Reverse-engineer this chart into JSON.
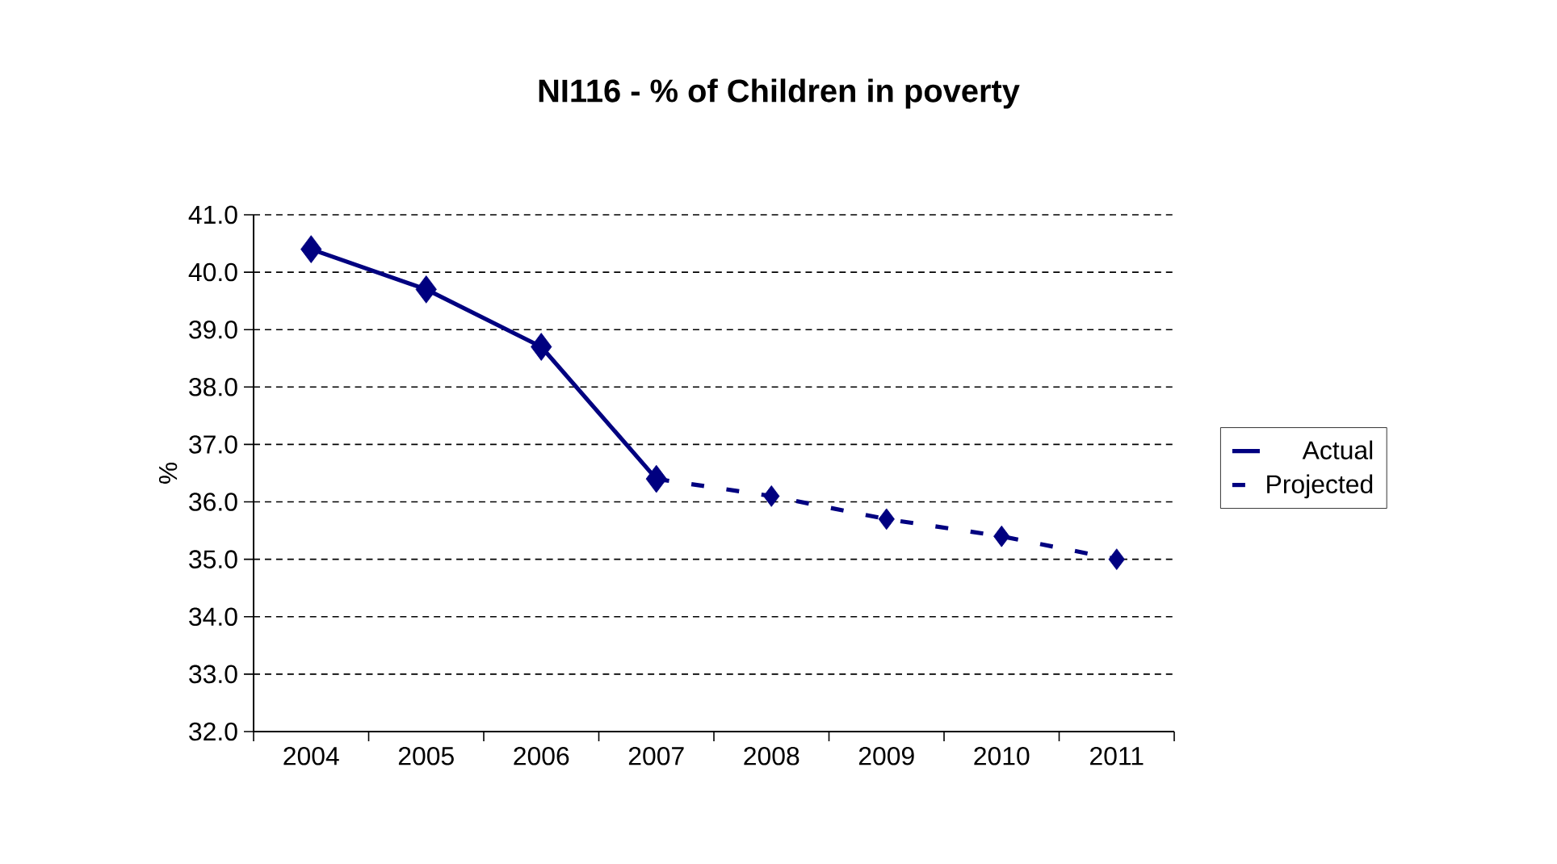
{
  "chart_data": {
    "type": "line",
    "title": "NI116 - % of Children in poverty",
    "ylabel": "%",
    "categories": [
      "2004",
      "2005",
      "2006",
      "2007",
      "2008",
      "2009",
      "2010",
      "2011"
    ],
    "series": [
      {
        "name": "Actual",
        "color": "#000080",
        "values": [
          40.4,
          39.7,
          38.7,
          36.4,
          null,
          null,
          null,
          null
        ],
        "line_style": "solid"
      },
      {
        "name": "Projected",
        "color": "#000080",
        "values": [
          null,
          null,
          null,
          36.4,
          36.1,
          35.7,
          35.4,
          35.0
        ],
        "line_style": "dashed"
      }
    ],
    "ylim": [
      32,
      41
    ],
    "yticks": [
      {
        "value": 32,
        "label": "32.0"
      },
      {
        "value": 33,
        "label": "33.0"
      },
      {
        "value": 34,
        "label": "34.0"
      },
      {
        "value": 35,
        "label": "35.0"
      },
      {
        "value": 36,
        "label": "36.0"
      },
      {
        "value": 37,
        "label": "37.0"
      },
      {
        "value": 38,
        "label": "38.0"
      },
      {
        "value": 39,
        "label": "39.0"
      },
      {
        "value": 40,
        "label": "40.0"
      },
      {
        "value": 41,
        "label": "41.0"
      }
    ],
    "grid": "y",
    "legend": "right",
    "marker": "diamond"
  }
}
